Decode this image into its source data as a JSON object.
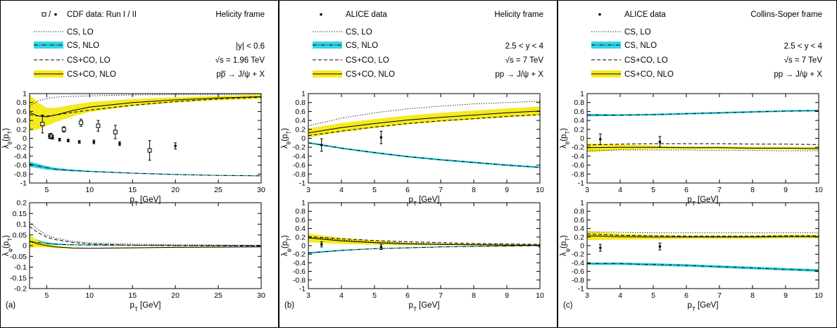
{
  "panels": [
    {
      "tag": "(a)",
      "legend": {
        "data": "□ / •   CDF data: Run I / II",
        "frame": "Helicity frame",
        "lines": [
          "CS, LO",
          "CS, NLO",
          "CS+CO, LO",
          "CS+CO, NLO"
        ],
        "kin": [
          "|y| < 0.6",
          "√s = 1.96 TeV",
          "pp̅ → J/ψ + X"
        ]
      },
      "xlabel": "p_T [GeV]",
      "top_ylabel": "λ_θ(p_T)",
      "bot_ylabel": "λ_φ(p_T)"
    },
    {
      "tag": "(b)",
      "legend": {
        "data": "•   ALICE data",
        "frame": "Helicity frame",
        "lines": [
          "CS, LO",
          "CS, NLO",
          "CS+CO, LO",
          "CS+CO, NLO"
        ],
        "kin": [
          "2.5 < y < 4",
          "√s = 7 TeV",
          "pp → J/ψ + X"
        ]
      },
      "xlabel": "p_T [GeV]",
      "top_ylabel": "λ_θ(p_T)",
      "bot_ylabel": "λ_φ(p_T)"
    },
    {
      "tag": "(c)",
      "legend": {
        "data": "•   ALICE data",
        "frame": "Collins-Soper frame",
        "lines": [
          "CS, LO",
          "CS, NLO",
          "CS+CO, LO",
          "CS+CO, NLO"
        ],
        "kin": [
          "2.5 < y < 4",
          "√s = 7 TeV",
          "pp → J/ψ + X"
        ]
      },
      "xlabel": "p_T [GeV]",
      "top_ylabel": "λ_θ(p_T)",
      "bot_ylabel": "λ_φ(p_T)"
    }
  ],
  "colors": {
    "cs_nlo_band": "#33d6e6",
    "csco_nlo_band": "#f5ea1f",
    "frame": "#000000"
  },
  "chart_data": [
    {
      "type": "line",
      "panel": "(a)",
      "plot": "lambda_theta",
      "xlabel": "p_T [GeV]",
      "ylabel": "λ_θ(p_T)",
      "xlim": [
        3,
        30
      ],
      "ylim": [
        -1,
        1
      ],
      "xticks": [
        5,
        10,
        15,
        20,
        25,
        30
      ],
      "yticks": [
        -1,
        -0.8,
        -0.6,
        -0.4,
        -0.2,
        0,
        0.2,
        0.4,
        0.6,
        0.8,
        1
      ],
      "series": [
        {
          "name": "CS, LO",
          "style": "dotted",
          "x": [
            3,
            4,
            5,
            6,
            8,
            10,
            15,
            20,
            25,
            30
          ],
          "y": [
            0.72,
            0.84,
            0.89,
            0.92,
            0.94,
            0.95,
            0.97,
            0.98,
            0.98,
            0.99
          ]
        },
        {
          "name": "CS, NLO",
          "style": "dashdot",
          "x": [
            3,
            4,
            5,
            6,
            8,
            10,
            15,
            20,
            25,
            30
          ],
          "y": [
            -0.58,
            -0.62,
            -0.66,
            -0.69,
            -0.72,
            -0.74,
            -0.78,
            -0.81,
            -0.83,
            -0.84
          ],
          "band": [
            0.06,
            0.05,
            0.04,
            0.03,
            0.02,
            0.015,
            0.01,
            0.01,
            0.01,
            0.01
          ]
        },
        {
          "name": "CS+CO, LO",
          "style": "dashed",
          "x": [
            3,
            4,
            5,
            6,
            8,
            10,
            15,
            20,
            25,
            30
          ],
          "y": [
            0.53,
            0.5,
            0.5,
            0.52,
            0.58,
            0.63,
            0.74,
            0.82,
            0.88,
            0.92
          ]
        },
        {
          "name": "CS+CO, NLO",
          "style": "solid",
          "x": [
            3,
            4,
            5,
            6,
            8,
            10,
            15,
            20,
            25,
            30
          ],
          "y": [
            0.58,
            0.5,
            0.48,
            0.52,
            0.62,
            0.7,
            0.8,
            0.86,
            0.9,
            0.93
          ],
          "band": [
            0.4,
            0.3,
            0.2,
            0.16,
            0.13,
            0.11,
            0.08,
            0.06,
            0.05,
            0.05
          ]
        }
      ],
      "data_sets": [
        {
          "marker": "open-square",
          "x": [
            4.5,
            5.5,
            7,
            9,
            11,
            13,
            17
          ],
          "y": [
            0.32,
            0.05,
            0.2,
            0.35,
            0.28,
            0.14,
            -0.27
          ],
          "err": [
            0.2,
            0.06,
            0.06,
            0.08,
            0.12,
            0.15,
            0.22
          ]
        },
        {
          "marker": "dot",
          "x": [
            5.3,
            5.7,
            6.5,
            7.5,
            8.8,
            10.5,
            13.5,
            20
          ],
          "y": [
            0.05,
            0.02,
            -0.03,
            -0.05,
            -0.08,
            -0.08,
            -0.12,
            -0.17
          ],
          "err": [
            0.05,
            0.04,
            0.03,
            0.03,
            0.03,
            0.04,
            0.04,
            0.07
          ]
        }
      ]
    },
    {
      "type": "line",
      "panel": "(a)",
      "plot": "lambda_phi",
      "xlabel": "p_T [GeV]",
      "ylabel": "λ_φ(p_T)",
      "xlim": [
        3,
        30
      ],
      "ylim": [
        -0.2,
        0.2
      ],
      "xticks": [
        5,
        10,
        15,
        20,
        25,
        30
      ],
      "yticks": [
        -0.2,
        -0.15,
        -0.1,
        -0.05,
        0,
        0.05,
        0.1,
        0.15,
        0.2
      ],
      "series": [
        {
          "name": "CS, LO",
          "style": "dotted",
          "x": [
            3,
            4,
            5,
            6,
            8,
            10,
            15,
            20,
            25,
            30
          ],
          "y": [
            0.11,
            0.075,
            0.05,
            0.035,
            0.02,
            0.013,
            0.007,
            0.004,
            0.003,
            0.002
          ]
        },
        {
          "name": "CS, NLO",
          "style": "dashdot",
          "x": [
            3,
            4,
            5,
            6,
            8,
            10,
            15,
            20,
            25,
            30
          ],
          "y": [
            0.02,
            0.015,
            0.01,
            0.007,
            0.004,
            0.003,
            0.002,
            0.001,
            0.001,
            0.001
          ],
          "band": [
            0.02,
            0.012,
            0.006,
            0.004,
            0.002,
            0.002,
            0.001,
            0.001,
            0.001,
            0.001
          ]
        },
        {
          "name": "CS+CO, LO",
          "style": "dashed",
          "x": [
            3,
            4,
            5,
            6,
            8,
            10,
            15,
            20,
            25,
            30
          ],
          "y": [
            0.09,
            0.06,
            0.04,
            0.028,
            0.015,
            0.008,
            0.002,
            0,
            -0.001,
            -0.002
          ]
        },
        {
          "name": "CS+CO, NLO",
          "style": "solid",
          "x": [
            3,
            4,
            5,
            6,
            8,
            10,
            15,
            20,
            25,
            30
          ],
          "y": [
            0.02,
            0.008,
            0,
            -0.006,
            -0.011,
            -0.012,
            -0.01,
            -0.008,
            -0.007,
            -0.006
          ],
          "band": [
            0.03,
            0.015,
            0.008,
            0.005,
            0.003,
            0.002,
            0.002,
            0.002,
            0.002,
            0.002
          ]
        }
      ]
    },
    {
      "type": "line",
      "panel": "(b)",
      "plot": "lambda_theta",
      "xlabel": "p_T [GeV]",
      "ylabel": "λ_θ(p_T)",
      "xlim": [
        3,
        10
      ],
      "ylim": [
        -1,
        1
      ],
      "xticks": [
        3,
        4,
        5,
        6,
        7,
        8,
        9,
        10
      ],
      "yticks": [
        -1,
        -0.8,
        -0.6,
        -0.4,
        -0.2,
        0,
        0.2,
        0.4,
        0.6,
        0.8,
        1
      ],
      "series": [
        {
          "name": "CS, LO",
          "style": "dotted",
          "x": [
            3,
            4,
            5,
            6,
            7,
            8,
            9,
            10
          ],
          "y": [
            0.28,
            0.45,
            0.57,
            0.66,
            0.72,
            0.77,
            0.8,
            0.83
          ]
        },
        {
          "name": "CS, NLO",
          "style": "dashdot",
          "x": [
            3,
            4,
            5,
            6,
            7,
            8,
            9,
            10
          ],
          "y": [
            -0.1,
            -0.22,
            -0.32,
            -0.41,
            -0.48,
            -0.54,
            -0.6,
            -0.65
          ],
          "band": [
            0.02,
            0.02,
            0.02,
            0.02,
            0.02,
            0.02,
            0.02,
            0.02
          ]
        },
        {
          "name": "CS+CO, LO",
          "style": "dashed",
          "x": [
            3,
            4,
            5,
            6,
            7,
            8,
            9,
            10
          ],
          "y": [
            0.06,
            0.16,
            0.25,
            0.33,
            0.39,
            0.44,
            0.49,
            0.53
          ]
        },
        {
          "name": "CS+CO, NLO",
          "style": "solid",
          "x": [
            3,
            4,
            5,
            6,
            7,
            8,
            9,
            10
          ],
          "y": [
            0.12,
            0.24,
            0.33,
            0.41,
            0.47,
            0.52,
            0.57,
            0.61
          ],
          "band": [
            0.1,
            0.1,
            0.1,
            0.1,
            0.1,
            0.1,
            0.1,
            0.1
          ]
        }
      ],
      "data_sets": [
        {
          "marker": "dot",
          "x": [
            3.4,
            5.2
          ],
          "y": [
            -0.15,
            0.02
          ],
          "err": [
            0.14,
            0.14
          ]
        }
      ]
    },
    {
      "type": "line",
      "panel": "(b)",
      "plot": "lambda_phi",
      "xlabel": "p_T [GeV]",
      "ylabel": "λ_φ(p_T)",
      "xlim": [
        3,
        10
      ],
      "ylim": [
        -1,
        1
      ],
      "xticks": [
        3,
        4,
        5,
        6,
        7,
        8,
        9,
        10
      ],
      "yticks": [
        -1,
        -0.8,
        -0.6,
        -0.4,
        -0.2,
        0,
        0.2,
        0.4,
        0.6,
        0.8,
        1
      ],
      "series": [
        {
          "name": "CS, LO",
          "style": "dotted",
          "x": [
            3,
            4,
            5,
            6,
            7,
            8,
            9,
            10
          ],
          "y": [
            0.2,
            0.13,
            0.08,
            0.06,
            0.04,
            0.03,
            0.02,
            0.01
          ]
        },
        {
          "name": "CS, NLO",
          "style": "dashdot",
          "x": [
            3,
            4,
            5,
            6,
            7,
            8,
            9,
            10
          ],
          "y": [
            -0.17,
            -0.11,
            -0.07,
            -0.05,
            -0.03,
            -0.02,
            -0.01,
            0
          ],
          "band": [
            0.02,
            0.015,
            0.01,
            0.01,
            0.01,
            0.01,
            0.01,
            0.01
          ]
        },
        {
          "name": "CS+CO, LO",
          "style": "dashed",
          "x": [
            3,
            4,
            5,
            6,
            7,
            8,
            9,
            10
          ],
          "y": [
            0.21,
            0.16,
            0.12,
            0.09,
            0.07,
            0.05,
            0.04,
            0.03
          ]
        },
        {
          "name": "CS+CO, NLO",
          "style": "solid",
          "x": [
            3,
            4,
            5,
            6,
            7,
            8,
            9,
            10
          ],
          "y": [
            0.18,
            0.11,
            0.07,
            0.04,
            0.03,
            0.02,
            0.01,
            0.01
          ],
          "band": [
            0.1,
            0.07,
            0.05,
            0.03,
            0.02,
            0.02,
            0.02,
            0.02
          ]
        }
      ],
      "data_sets": [
        {
          "marker": "dot",
          "x": [
            3.4,
            5.2,
            10
          ],
          "y": [
            0.03,
            -0.03,
            0
          ],
          "err": [
            0.06,
            0.06,
            0.03
          ]
        }
      ]
    },
    {
      "type": "line",
      "panel": "(c)",
      "plot": "lambda_theta",
      "xlabel": "p_T [GeV]",
      "ylabel": "λ_θ(p_T)",
      "xlim": [
        3,
        10
      ],
      "ylim": [
        -1,
        1
      ],
      "xticks": [
        3,
        4,
        5,
        6,
        7,
        8,
        9,
        10
      ],
      "yticks": [
        -1,
        -0.8,
        -0.6,
        -0.4,
        -0.2,
        0,
        0.2,
        0.4,
        0.6,
        0.8,
        1
      ],
      "series": [
        {
          "name": "CS, LO",
          "style": "dotted",
          "x": [
            3,
            4,
            5,
            6,
            7,
            8,
            9,
            10
          ],
          "y": [
            -0.28,
            -0.26,
            -0.26,
            -0.26,
            -0.27,
            -0.27,
            -0.28,
            -0.28
          ]
        },
        {
          "name": "CS, NLO",
          "style": "dashdot",
          "x": [
            3,
            4,
            5,
            6,
            7,
            8,
            9,
            10
          ],
          "y": [
            0.52,
            0.52,
            0.53,
            0.55,
            0.57,
            0.59,
            0.61,
            0.62
          ],
          "band": [
            0.03,
            0.02,
            0.02,
            0.02,
            0.02,
            0.02,
            0.02,
            0.02
          ]
        },
        {
          "name": "CS+CO, LO",
          "style": "dashed",
          "x": [
            3,
            4,
            5,
            6,
            7,
            8,
            9,
            10
          ],
          "y": [
            -0.15,
            -0.13,
            -0.12,
            -0.12,
            -0.12,
            -0.13,
            -0.13,
            -0.14
          ]
        },
        {
          "name": "CS+CO, NLO",
          "style": "solid",
          "x": [
            3,
            4,
            5,
            6,
            7,
            8,
            9,
            10
          ],
          "y": [
            -0.21,
            -0.2,
            -0.2,
            -0.21,
            -0.21,
            -0.22,
            -0.22,
            -0.23
          ],
          "band": [
            0.1,
            0.06,
            0.04,
            0.03,
            0.03,
            0.03,
            0.03,
            0.03
          ]
        }
      ],
      "data_sets": [
        {
          "marker": "dot",
          "x": [
            3.4,
            5.2
          ],
          "y": [
            -0.02,
            -0.08
          ],
          "err": [
            0.12,
            0.12
          ]
        }
      ]
    },
    {
      "type": "line",
      "panel": "(c)",
      "plot": "lambda_phi",
      "xlabel": "p_T [GeV]",
      "ylabel": "λ_φ(p_T)",
      "xlim": [
        3,
        10
      ],
      "ylim": [
        -1,
        1
      ],
      "xticks": [
        3,
        4,
        5,
        6,
        7,
        8,
        9,
        10
      ],
      "yticks": [
        -1,
        -0.8,
        -0.6,
        -0.4,
        -0.2,
        0,
        0.2,
        0.4,
        0.6,
        0.8,
        1
      ],
      "series": [
        {
          "name": "CS, LO",
          "style": "dotted",
          "x": [
            3,
            4,
            5,
            6,
            7,
            8,
            9,
            10
          ],
          "y": [
            0.32,
            0.31,
            0.3,
            0.3,
            0.3,
            0.3,
            0.3,
            0.3
          ]
        },
        {
          "name": "CS, NLO",
          "style": "dashdot",
          "x": [
            3,
            4,
            5,
            6,
            7,
            8,
            9,
            10
          ],
          "y": [
            -0.42,
            -0.42,
            -0.44,
            -0.46,
            -0.49,
            -0.52,
            -0.55,
            -0.58
          ],
          "band": [
            0.03,
            0.03,
            0.03,
            0.03,
            0.03,
            0.03,
            0.03,
            0.03
          ]
        },
        {
          "name": "CS+CO, LO",
          "style": "dashed",
          "x": [
            3,
            4,
            5,
            6,
            7,
            8,
            9,
            10
          ],
          "y": [
            0.27,
            0.24,
            0.23,
            0.22,
            0.22,
            0.22,
            0.23,
            0.23
          ]
        },
        {
          "name": "CS+CO, NLO",
          "style": "solid",
          "x": [
            3,
            4,
            5,
            6,
            7,
            8,
            9,
            10
          ],
          "y": [
            0.23,
            0.21,
            0.2,
            0.2,
            0.2,
            0.2,
            0.21,
            0.21
          ],
          "band": [
            0.1,
            0.07,
            0.05,
            0.04,
            0.04,
            0.04,
            0.04,
            0.04
          ]
        }
      ],
      "data_sets": [
        {
          "marker": "dot",
          "x": [
            3.4,
            5.2
          ],
          "y": [
            -0.05,
            -0.02
          ],
          "err": [
            0.08,
            0.08
          ]
        }
      ]
    }
  ]
}
